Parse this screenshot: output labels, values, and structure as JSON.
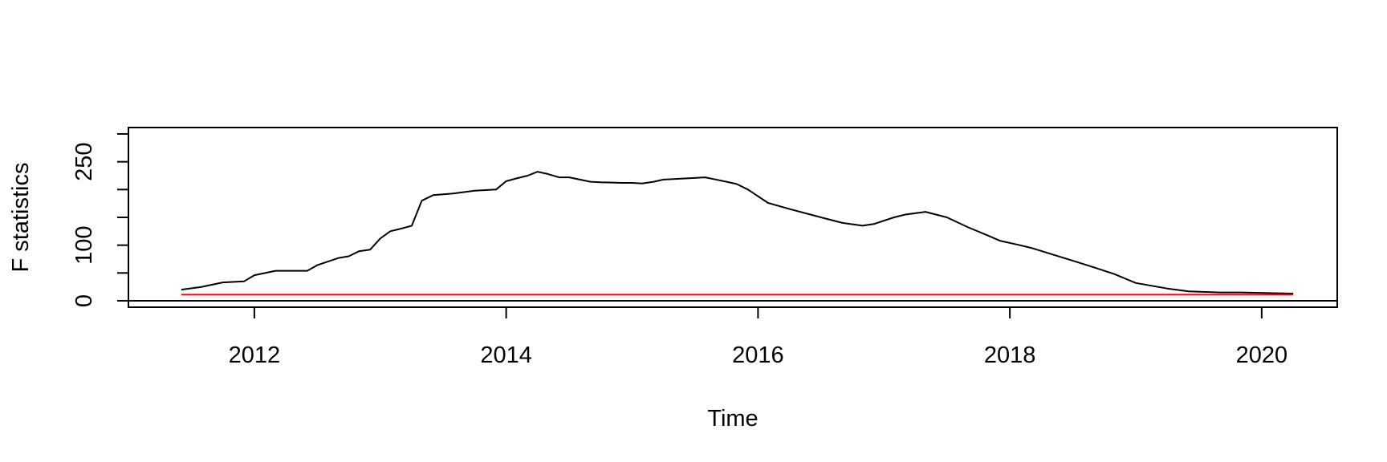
{
  "chart_data": {
    "type": "line",
    "title": "",
    "xlabel": "Time",
    "ylabel": "F statistics",
    "xlim": [
      2011.0,
      2020.6
    ],
    "ylim": [
      -8,
      300
    ],
    "x_ticks": [
      2012,
      2014,
      2016,
      2018,
      2020
    ],
    "x_tick_labels": [
      "2012",
      "2014",
      "2016",
      "2018",
      "2020"
    ],
    "y_ticks": [
      0,
      50,
      100,
      150,
      200,
      250,
      300
    ],
    "y_tick_labels": [
      "0",
      "",
      "100",
      "",
      "",
      "250",
      ""
    ],
    "grid": false,
    "reference_lines": [
      {
        "y": 0,
        "color": "#000000"
      }
    ],
    "series": [
      {
        "color": "#000000",
        "x": [
          2011.42,
          2011.58,
          2011.75,
          2011.92,
          2012.0,
          2012.17,
          2012.42,
          2012.5,
          2012.67,
          2012.75,
          2012.83,
          2012.92,
          2013.0,
          2013.08,
          2013.17,
          2013.25,
          2013.33,
          2013.42,
          2013.58,
          2013.75,
          2013.92,
          2014.0,
          2014.08,
          2014.17,
          2014.25,
          2014.33,
          2014.42,
          2014.5,
          2014.67,
          2014.75,
          2014.92,
          2015.0,
          2015.08,
          2015.17,
          2015.25,
          2015.42,
          2015.58,
          2015.75,
          2015.83,
          2015.92,
          2016.08,
          2016.25,
          2016.5,
          2016.67,
          2016.83,
          2016.92,
          2017.08,
          2017.17,
          2017.33,
          2017.5,
          2017.67,
          2017.83,
          2017.92,
          2018.08,
          2018.17,
          2018.33,
          2018.5,
          2018.67,
          2018.83,
          2019.0,
          2019.25,
          2019.42,
          2019.67,
          2019.83,
          2020.25
        ],
        "y": [
          20,
          25,
          33,
          35,
          46,
          54,
          54,
          64,
          77,
          80,
          89,
          92,
          112,
          125,
          130,
          135,
          180,
          190,
          193,
          198,
          200,
          215,
          220,
          225,
          232,
          228,
          222,
          222,
          214,
          213,
          212,
          212,
          211,
          214,
          218,
          220,
          222,
          214,
          210,
          200,
          176,
          165,
          150,
          140,
          135,
          138,
          150,
          155,
          160,
          150,
          132,
          117,
          108,
          100,
          95,
          84,
          72,
          60,
          48,
          32,
          22,
          17,
          15,
          15,
          13
        ]
      },
      {
        "color": "#ff0000",
        "x": [
          2011.42,
          2020.25
        ],
        "y": [
          11,
          11
        ]
      }
    ]
  }
}
